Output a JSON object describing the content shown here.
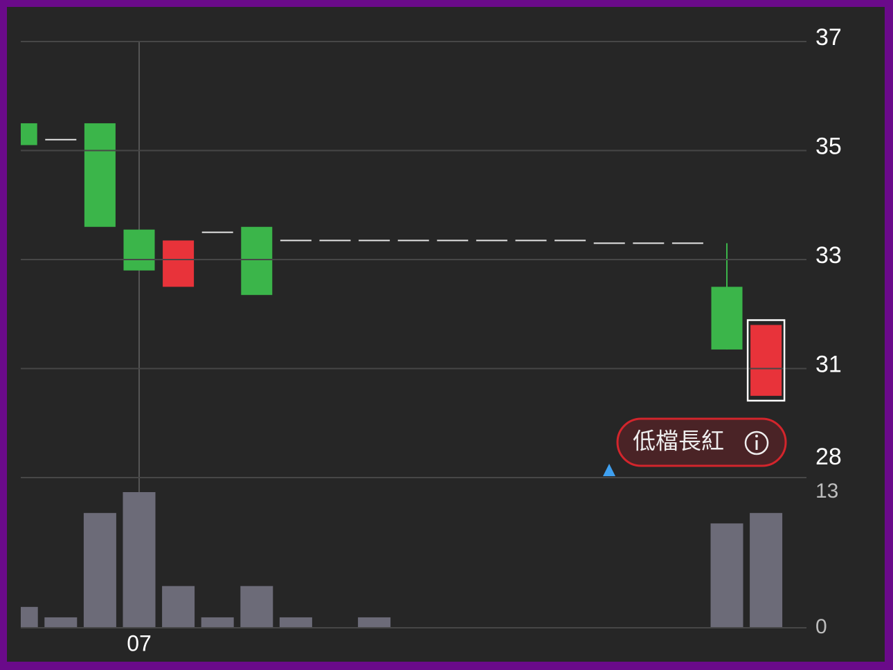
{
  "chart_data": [
    {
      "type": "candlestick",
      "categories": [
        null,
        null,
        null,
        "07",
        null,
        null,
        null,
        null,
        null,
        null,
        null,
        null,
        null,
        null,
        null,
        null,
        null,
        null,
        null,
        null
      ],
      "open": [
        35.5,
        35.2,
        35.5,
        33.55,
        32.5,
        33.5,
        33.6,
        33.35,
        33.35,
        33.35,
        33.35,
        33.35,
        33.35,
        33.35,
        33.35,
        33.3,
        33.3,
        33.3,
        32.5,
        30.5
      ],
      "high": [
        35.5,
        35.2,
        35.5,
        33.55,
        33.35,
        33.5,
        33.6,
        33.35,
        33.35,
        33.35,
        33.35,
        33.35,
        33.35,
        33.35,
        33.35,
        33.3,
        33.3,
        33.3,
        33.3,
        31.8
      ],
      "low": [
        35.1,
        35.2,
        33.6,
        32.8,
        32.5,
        33.5,
        32.35,
        33.35,
        33.35,
        33.35,
        33.35,
        33.35,
        33.35,
        33.35,
        33.35,
        33.3,
        33.3,
        33.3,
        31.35,
        30.5
      ],
      "close": [
        35.1,
        35.2,
        33.6,
        32.8,
        33.35,
        33.5,
        32.35,
        33.35,
        33.35,
        33.35,
        33.35,
        33.35,
        33.35,
        33.35,
        33.35,
        33.3,
        33.3,
        33.3,
        31.35,
        31.8
      ],
      "up_color": "#e8333a",
      "down_color": "#3bb54a",
      "flat_color": "#e6e6e6",
      "ylim": [
        29,
        37
      ],
      "yticks": [
        37,
        35,
        33,
        31
      ],
      "bottom_label": 28,
      "grid": true,
      "annotation": "低檔長紅"
    },
    {
      "type": "bar",
      "values": [
        2,
        1,
        11,
        13,
        4,
        1,
        4,
        1,
        0,
        1,
        0,
        0,
        0,
        0,
        0,
        0,
        0,
        0,
        10,
        11
      ],
      "color": "#6c6b78",
      "ylim": [
        0,
        13
      ],
      "yticks": [
        0,
        13
      ]
    }
  ]
}
